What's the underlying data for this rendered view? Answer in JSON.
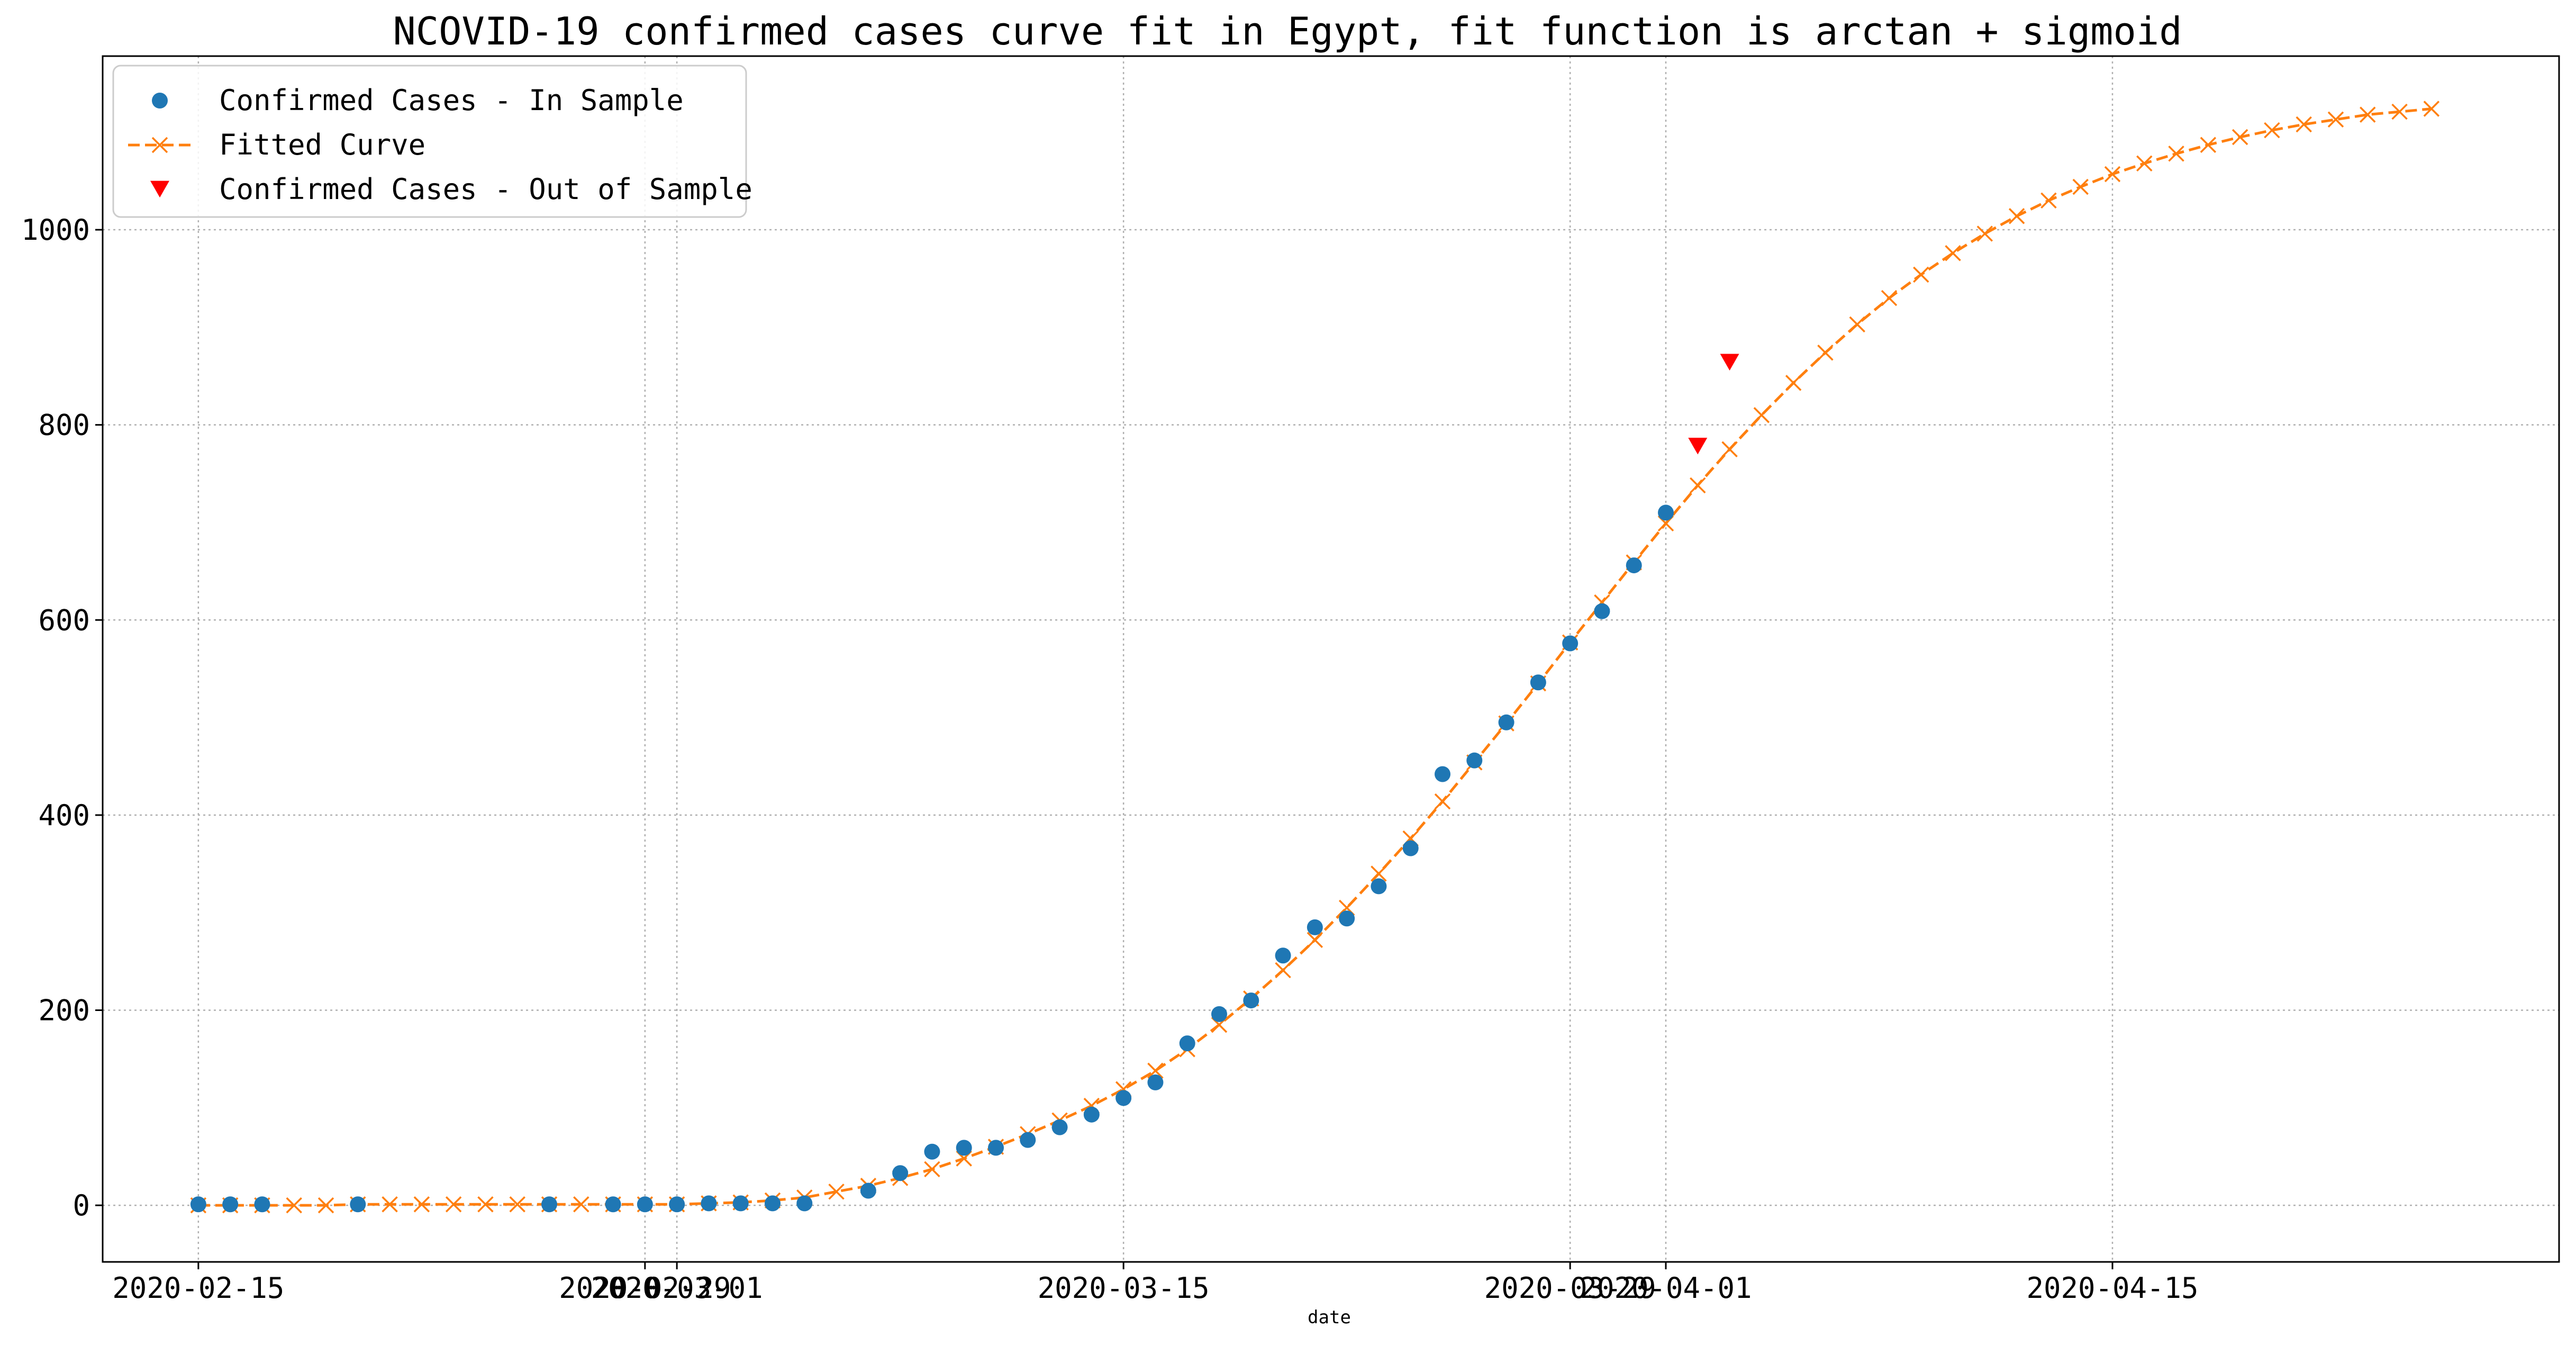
{
  "chart_data": {
    "type": "line",
    "title": "NCOVID-19 confirmed cases curve fit in Egypt, fit function is arctan + sigmoid",
    "xlabel": "date",
    "ylabel": "",
    "grid": true,
    "legend_position": "top-left",
    "xlim": [
      "2020-02-12",
      "2020-04-29"
    ],
    "ylim": [
      -58,
      1178
    ],
    "x_ticks": [
      {
        "date": "2020-02-15",
        "label": "2020-02-15"
      },
      {
        "date": "2020-02-29",
        "label": "2020-02-29"
      },
      {
        "date": "2020-03-01",
        "label": "2020-03-01"
      },
      {
        "date": "2020-03-15",
        "label": "2020-03-15"
      },
      {
        "date": "2020-03-29",
        "label": "2020-03-29"
      },
      {
        "date": "2020-04-01",
        "label": "2020-04-01"
      },
      {
        "date": "2020-04-15",
        "label": "2020-04-15"
      }
    ],
    "y_ticks": [
      0,
      200,
      400,
      600,
      800,
      1000
    ],
    "colors": {
      "in_sample": "#1f77b4",
      "fitted": "#ff7f0e",
      "out_sample": "#ff0000",
      "grid": "#b0b0b0"
    },
    "series": [
      {
        "name": "Confirmed Cases - In Sample",
        "kind": "scatter",
        "marker": "circle",
        "points": [
          {
            "x": "2020-02-15",
            "y": 1
          },
          {
            "x": "2020-02-16",
            "y": 1
          },
          {
            "x": "2020-02-17",
            "y": 1
          },
          {
            "x": "2020-02-20",
            "y": 1
          },
          {
            "x": "2020-02-26",
            "y": 1
          },
          {
            "x": "2020-02-28",
            "y": 1
          },
          {
            "x": "2020-02-29",
            "y": 1
          },
          {
            "x": "2020-03-01",
            "y": 1
          },
          {
            "x": "2020-03-02",
            "y": 2
          },
          {
            "x": "2020-03-03",
            "y": 2
          },
          {
            "x": "2020-03-04",
            "y": 2
          },
          {
            "x": "2020-03-05",
            "y": 2
          },
          {
            "x": "2020-03-07",
            "y": 15
          },
          {
            "x": "2020-03-08",
            "y": 33
          },
          {
            "x": "2020-03-09",
            "y": 55
          },
          {
            "x": "2020-03-10",
            "y": 59
          },
          {
            "x": "2020-03-11",
            "y": 59
          },
          {
            "x": "2020-03-12",
            "y": 67
          },
          {
            "x": "2020-03-13",
            "y": 80
          },
          {
            "x": "2020-03-14",
            "y": 93
          },
          {
            "x": "2020-03-15",
            "y": 110
          },
          {
            "x": "2020-03-16",
            "y": 126
          },
          {
            "x": "2020-03-17",
            "y": 166
          },
          {
            "x": "2020-03-18",
            "y": 196
          },
          {
            "x": "2020-03-19",
            "y": 210
          },
          {
            "x": "2020-03-20",
            "y": 256
          },
          {
            "x": "2020-03-21",
            "y": 285
          },
          {
            "x": "2020-03-22",
            "y": 294
          },
          {
            "x": "2020-03-23",
            "y": 327
          },
          {
            "x": "2020-03-24",
            "y": 366
          },
          {
            "x": "2020-03-25",
            "y": 442
          },
          {
            "x": "2020-03-26",
            "y": 456
          },
          {
            "x": "2020-03-27",
            "y": 495
          },
          {
            "x": "2020-03-28",
            "y": 536
          },
          {
            "x": "2020-03-29",
            "y": 576
          },
          {
            "x": "2020-03-30",
            "y": 609
          },
          {
            "x": "2020-03-31",
            "y": 656
          },
          {
            "x": "2020-04-01",
            "y": 710
          }
        ]
      },
      {
        "name": "Fitted Curve",
        "kind": "line",
        "marker": "x",
        "line_style": "dashed",
        "points": [
          {
            "x": "2020-02-15",
            "y": 0
          },
          {
            "x": "2020-02-16",
            "y": 0
          },
          {
            "x": "2020-02-17",
            "y": 0
          },
          {
            "x": "2020-02-18",
            "y": 0
          },
          {
            "x": "2020-02-19",
            "y": 0
          },
          {
            "x": "2020-02-20",
            "y": 1
          },
          {
            "x": "2020-02-21",
            "y": 1
          },
          {
            "x": "2020-02-22",
            "y": 1
          },
          {
            "x": "2020-02-23",
            "y": 1
          },
          {
            "x": "2020-02-24",
            "y": 1
          },
          {
            "x": "2020-02-25",
            "y": 1
          },
          {
            "x": "2020-02-26",
            "y": 1
          },
          {
            "x": "2020-02-27",
            "y": 1
          },
          {
            "x": "2020-02-28",
            "y": 1
          },
          {
            "x": "2020-02-29",
            "y": 1
          },
          {
            "x": "2020-03-01",
            "y": 1
          },
          {
            "x": "2020-03-02",
            "y": 2
          },
          {
            "x": "2020-03-03",
            "y": 3
          },
          {
            "x": "2020-03-04",
            "y": 5
          },
          {
            "x": "2020-03-05",
            "y": 8
          },
          {
            "x": "2020-03-06",
            "y": 14
          },
          {
            "x": "2020-03-07",
            "y": 20
          },
          {
            "x": "2020-03-08",
            "y": 28
          },
          {
            "x": "2020-03-09",
            "y": 37
          },
          {
            "x": "2020-03-10",
            "y": 48
          },
          {
            "x": "2020-03-11",
            "y": 60
          },
          {
            "x": "2020-03-12",
            "y": 73
          },
          {
            "x": "2020-03-13",
            "y": 87
          },
          {
            "x": "2020-03-14",
            "y": 102
          },
          {
            "x": "2020-03-15",
            "y": 119
          },
          {
            "x": "2020-03-16",
            "y": 138
          },
          {
            "x": "2020-03-17",
            "y": 160
          },
          {
            "x": "2020-03-18",
            "y": 185
          },
          {
            "x": "2020-03-19",
            "y": 212
          },
          {
            "x": "2020-03-20",
            "y": 241
          },
          {
            "x": "2020-03-21",
            "y": 272
          },
          {
            "x": "2020-03-22",
            "y": 305
          },
          {
            "x": "2020-03-23",
            "y": 340
          },
          {
            "x": "2020-03-24",
            "y": 376
          },
          {
            "x": "2020-03-25",
            "y": 414
          },
          {
            "x": "2020-03-26",
            "y": 454
          },
          {
            "x": "2020-03-27",
            "y": 494
          },
          {
            "x": "2020-03-28",
            "y": 535
          },
          {
            "x": "2020-03-29",
            "y": 577
          },
          {
            "x": "2020-03-30",
            "y": 618
          },
          {
            "x": "2020-03-31",
            "y": 659
          },
          {
            "x": "2020-04-01",
            "y": 699
          },
          {
            "x": "2020-04-02",
            "y": 738
          },
          {
            "x": "2020-04-03",
            "y": 775
          },
          {
            "x": "2020-04-04",
            "y": 810
          },
          {
            "x": "2020-04-05",
            "y": 843
          },
          {
            "x": "2020-04-06",
            "y": 874
          },
          {
            "x": "2020-04-07",
            "y": 903
          },
          {
            "x": "2020-04-08",
            "y": 930
          },
          {
            "x": "2020-04-09",
            "y": 954
          },
          {
            "x": "2020-04-10",
            "y": 976
          },
          {
            "x": "2020-04-11",
            "y": 996
          },
          {
            "x": "2020-04-12",
            "y": 1014
          },
          {
            "x": "2020-04-13",
            "y": 1030
          },
          {
            "x": "2020-04-14",
            "y": 1044
          },
          {
            "x": "2020-04-15",
            "y": 1057
          },
          {
            "x": "2020-04-16",
            "y": 1068
          },
          {
            "x": "2020-04-17",
            "y": 1078
          },
          {
            "x": "2020-04-18",
            "y": 1087
          },
          {
            "x": "2020-04-19",
            "y": 1095
          },
          {
            "x": "2020-04-20",
            "y": 1102
          },
          {
            "x": "2020-04-21",
            "y": 1108
          },
          {
            "x": "2020-04-22",
            "y": 1113
          },
          {
            "x": "2020-04-23",
            "y": 1118
          },
          {
            "x": "2020-04-24",
            "y": 1121
          },
          {
            "x": "2020-04-25",
            "y": 1124
          }
        ]
      },
      {
        "name": "Confirmed Cases - Out of Sample",
        "kind": "scatter",
        "marker": "triangle-down",
        "points": [
          {
            "x": "2020-04-02",
            "y": 779
          },
          {
            "x": "2020-04-03",
            "y": 865
          }
        ]
      }
    ]
  }
}
